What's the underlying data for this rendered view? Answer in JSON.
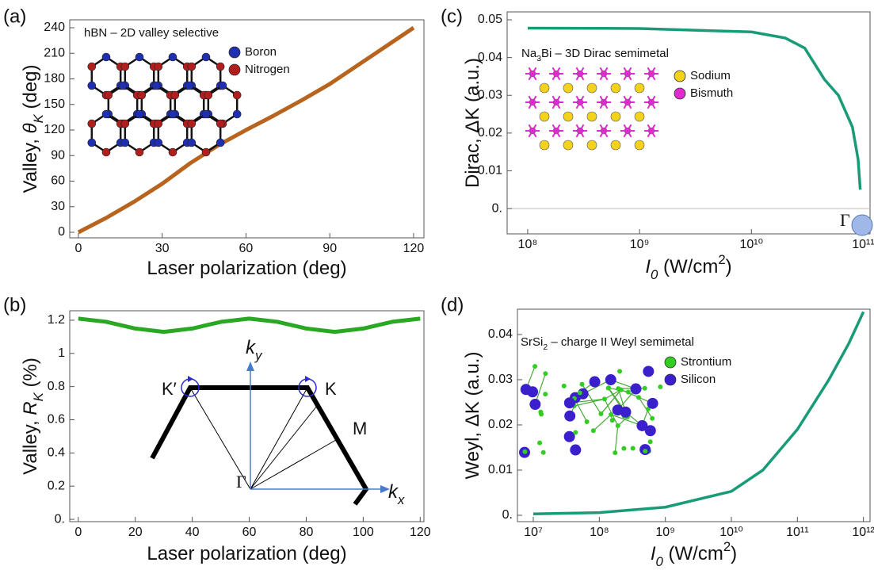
{
  "chart_data": [
    {
      "type": "line",
      "panel_label": "(a)",
      "title": [
        {
          "text": "hBN – 2D valley selective"
        }
      ],
      "x_label": [
        {
          "text": "Laser polarization (deg)"
        }
      ],
      "y_label": [
        {
          "text": "Valley, "
        },
        {
          "text": "θ",
          "style": "italic"
        },
        {
          "text": "K",
          "style": "italic-sub"
        },
        {
          "text": " (deg)"
        }
      ],
      "x": [
        0,
        10,
        20,
        30,
        40,
        50,
        60,
        70,
        80,
        90,
        100,
        110,
        120
      ],
      "values": [
        0,
        17,
        36,
        57,
        81,
        102,
        120,
        137,
        155,
        174,
        196,
        218,
        240
      ],
      "color": "#b8641e",
      "xlim": [
        -3.1,
        123.7
      ],
      "ylim": [
        -6.5,
        249.3
      ],
      "xticks": [
        0,
        30,
        60,
        90,
        120
      ],
      "yticks": [
        0,
        30,
        60,
        90,
        120,
        150,
        180,
        210,
        240
      ],
      "legend": [
        {
          "label": "Boron",
          "color": "#1f2fb0"
        },
        {
          "label": "Nitrogen",
          "color": "#b01e1e"
        }
      ]
    },
    {
      "type": "line",
      "panel_label": "(b)",
      "x_label": [
        {
          "text": "Laser polarization (deg)"
        }
      ],
      "y_label": [
        {
          "text": "Valley, "
        },
        {
          "text": "R",
          "style": "italic"
        },
        {
          "text": "K",
          "style": "italic-sub"
        },
        {
          "text": " (%)"
        }
      ],
      "x": [
        0,
        10,
        20,
        30,
        40,
        50,
        60,
        70,
        80,
        90,
        100,
        110,
        120
      ],
      "values": [
        1.21,
        1.19,
        1.15,
        1.13,
        1.15,
        1.19,
        1.21,
        1.19,
        1.15,
        1.13,
        1.15,
        1.19,
        1.21
      ],
      "color": "#2aa824",
      "xlim": [
        -3.0,
        121.3
      ],
      "ylim": [
        -0.014,
        1.257
      ],
      "xticks": [
        0,
        20,
        40,
        60,
        80,
        100,
        120
      ],
      "yticks": [
        {
          "value": 0,
          "label": "0."
        },
        0.2,
        0.4,
        0.6,
        0.8,
        1,
        1.2
      ],
      "diagram_labels": [
        "K′",
        "K",
        "M",
        "Γ"
      ],
      "ky_label": [
        {
          "text": "k",
          "style": "italic"
        },
        {
          "text": "y",
          "style": "italic-sub"
        }
      ],
      "kx_label": [
        {
          "text": "k",
          "style": "italic"
        },
        {
          "text": "x",
          "style": "italic-sub"
        }
      ]
    },
    {
      "type": "line",
      "panel_label": "(c)",
      "title": [
        {
          "text": "Na"
        },
        {
          "text": "3",
          "style": "sub"
        },
        {
          "text": "Bi – 3D Dirac semimetal"
        }
      ],
      "x_label": [
        {
          "text": "I",
          "style": "italic"
        },
        {
          "text": "0",
          "style": "italic-sub"
        },
        {
          "text": " (W/cm"
        },
        {
          "text": "2",
          "style": "sup"
        },
        {
          "text": ")"
        }
      ],
      "y_label": [
        {
          "text": "Dirac, ΔK (a.u.)"
        }
      ],
      "x": [
        100000000,
        1000000000,
        10000000000,
        20000000000,
        30000000000,
        45000000000,
        60000000000,
        80000000000,
        90000000000,
        94000000000
      ],
      "values": [
        0.0478,
        0.0477,
        0.0468,
        0.0452,
        0.0425,
        0.0342,
        0.03,
        0.0216,
        0.013,
        0.005
      ],
      "color": "#1a9b78",
      "xscale": "log",
      "zero_line": true,
      "xlim": [
        65500000,
        115000000000
      ],
      "ylim": [
        -0.0067,
        0.0521
      ],
      "xticks": [
        {
          "value": 100000000,
          "label": "10⁸"
        },
        {
          "value": 1000000000,
          "label": "10⁹"
        },
        {
          "value": 10000000000,
          "label": "10¹⁰"
        },
        {
          "value": 100000000000,
          "label": "10¹¹"
        }
      ],
      "yticks": [
        {
          "value": 0,
          "label": "0."
        },
        0.01,
        0.02,
        0.03,
        0.04,
        0.05
      ],
      "annotation": "Γ",
      "legend": [
        {
          "label": "Sodium",
          "color": "#f5d21a"
        },
        {
          "label": "Bismuth",
          "color": "#e02ad0"
        }
      ]
    },
    {
      "type": "line",
      "panel_label": "(d)",
      "title": [
        {
          "text": "SrSi"
        },
        {
          "text": "2",
          "style": "sub"
        },
        {
          "text": " – charge II Weyl semimetal"
        }
      ],
      "x_label": [
        {
          "text": "I",
          "style": "italic"
        },
        {
          "text": "0",
          "style": "italic-sub"
        },
        {
          "text": " (W/cm"
        },
        {
          "text": "2",
          "style": "sup"
        },
        {
          "text": ")"
        }
      ],
      "y_label": [
        {
          "text": "Weyl, ΔK (a.u.)"
        }
      ],
      "x": [
        10000000,
        100000000,
        1000000000,
        10000000000,
        30000000000,
        100000000000,
        300000000000,
        600000000000,
        1000000000000
      ],
      "values": [
        0.0003,
        0.0006,
        0.0018,
        0.0053,
        0.01,
        0.019,
        0.03,
        0.038,
        0.045
      ],
      "color": "#1a9b78",
      "xscale": "log",
      "xlim": [
        5750000,
        1260000000000
      ],
      "ylim": [
        -0.0014,
        0.0456
      ],
      "xticks": [
        {
          "value": 10000000,
          "label": "10⁷"
        },
        {
          "value": 100000000,
          "label": "10⁸"
        },
        {
          "value": 1000000000,
          "label": "10⁹"
        },
        {
          "value": 10000000000,
          "label": "10¹⁰"
        },
        {
          "value": 100000000000,
          "label": "10¹¹"
        },
        {
          "value": 1000000000000,
          "label": "10¹²"
        }
      ],
      "yticks": [
        {
          "value": 0,
          "label": "0."
        },
        0.01,
        0.02,
        0.03,
        0.04
      ],
      "legend": [
        {
          "label": "Strontium",
          "color": "#33cc22"
        },
        {
          "label": "Silicon",
          "color": "#3a1fcc"
        }
      ]
    }
  ]
}
